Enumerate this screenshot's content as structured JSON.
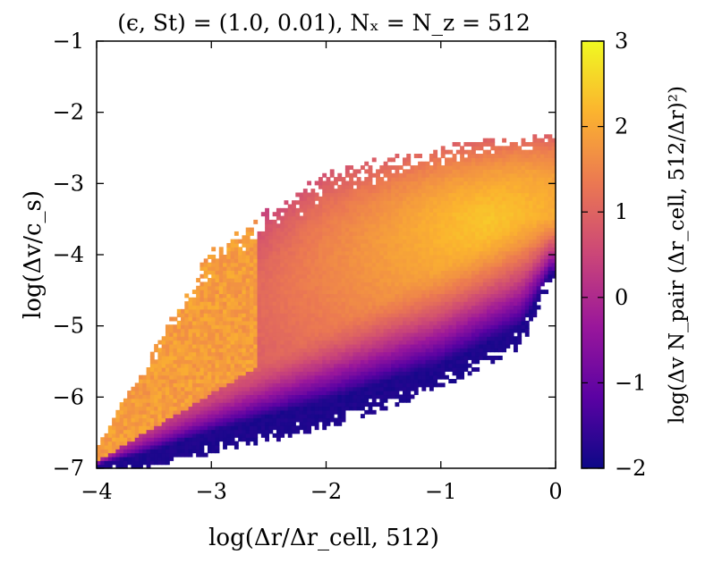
{
  "chart_data": {
    "type": "heatmap",
    "title": "(ϵ, St) = (1.0, 0.01), Nₓ = N_z = 512",
    "xlabel": "log(Δr/Δr_cell, 512)",
    "ylabel": "log(Δv/c_s)",
    "colorbar_label": "log(Δv N_pair (Δr_cell, 512/Δr)²)",
    "xlim": [
      -4,
      0
    ],
    "ylim": [
      -7,
      -1
    ],
    "clim": [
      -2,
      3
    ],
    "x_ticks": [
      "−4",
      "−3",
      "−2",
      "−1",
      "0"
    ],
    "x_tick_values": [
      -4,
      -3,
      -2,
      -1,
      0
    ],
    "y_ticks": [
      "−7",
      "−6",
      "−5",
      "−4",
      "−3",
      "−2",
      "−1"
    ],
    "y_tick_values": [
      -7,
      -6,
      -5,
      -4,
      -3,
      -2,
      -1
    ],
    "cb_ticks": [
      "−2",
      "−1",
      "0",
      "1",
      "2",
      "3"
    ],
    "cb_tick_values": [
      -2,
      -1,
      0,
      1,
      2,
      3
    ],
    "colormap": "plasma",
    "colormap_stops": [
      "#0d0887",
      "#5b02a3",
      "#9a179b",
      "#cb4678",
      "#eb7852",
      "#fbb32f",
      "#f0f921"
    ],
    "bins": {
      "nx": 120,
      "ny": 110
    },
    "structure": {
      "ridge": [
        [
          -4.0,
          -6.9
        ],
        [
          -3.0,
          -5.95
        ],
        [
          -2.0,
          -5.0
        ],
        [
          -1.0,
          -4.1
        ],
        [
          -0.3,
          -3.4
        ]
      ],
      "upper_edge": [
        [
          -4.0,
          -6.7
        ],
        [
          -3.0,
          -3.9
        ],
        [
          -2.0,
          -2.8
        ],
        [
          -1.0,
          -2.45
        ],
        [
          -0.1,
          -2.3
        ]
      ],
      "lower_edge": [
        [
          -3.6,
          -7.0
        ],
        [
          -2.0,
          -6.45
        ],
        [
          -1.0,
          -5.9
        ],
        [
          -0.3,
          -5.3
        ],
        [
          -0.05,
          -4.4
        ]
      ],
      "peak": [
        -0.6,
        -3.5
      ],
      "peak_value": 2.4,
      "low_density_lower_band": -1.9
    }
  }
}
